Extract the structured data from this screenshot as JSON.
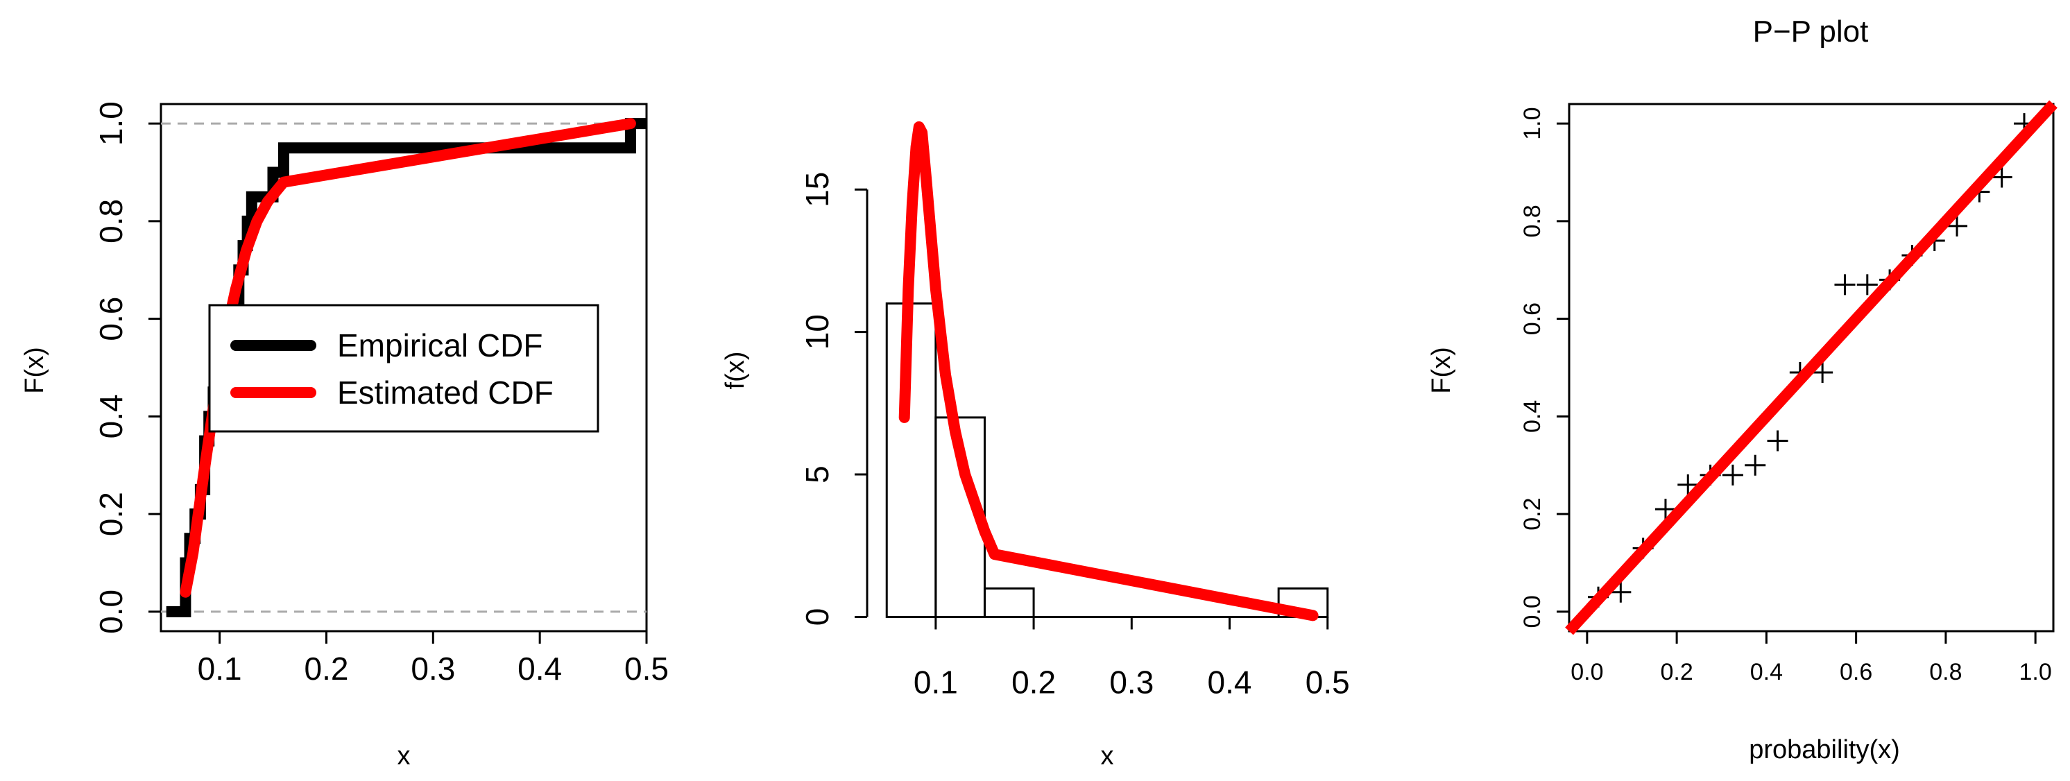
{
  "chart_data": [
    {
      "type": "line",
      "title": "",
      "xlabel": "x",
      "ylabel": "F(x)",
      "xlim": [
        0.045,
        0.5
      ],
      "ylim": [
        -0.04,
        1.04
      ],
      "x_ticks": [
        0.1,
        0.2,
        0.3,
        0.4,
        0.5
      ],
      "x_tick_labels": [
        "0.1",
        "0.2",
        "0.3",
        "0.4",
        "0.5"
      ],
      "y_ticks": [
        0,
        0.2,
        0.4,
        0.6,
        0.8,
        1.0
      ],
      "y_tick_labels": [
        "0.0",
        "0.2",
        "0.4",
        "0.6",
        "0.8",
        "1.0"
      ],
      "reference_lines_y": [
        0,
        1
      ],
      "legend": {
        "position": "center",
        "entries": [
          "Empirical CDF",
          "Estimated CDF"
        ]
      },
      "series": [
        {
          "name": "Empirical CDF",
          "color": "#000000",
          "kind": "step",
          "x": [
            0.05,
            0.068,
            0.072,
            0.077,
            0.082,
            0.086,
            0.09,
            0.094,
            0.098,
            0.102,
            0.106,
            0.11,
            0.114,
            0.118,
            0.122,
            0.126,
            0.13,
            0.135,
            0.14,
            0.15,
            0.16,
            0.485,
            0.5
          ],
          "values": [
            0.0,
            0.1,
            0.15,
            0.2,
            0.25,
            0.35,
            0.4,
            0.45,
            0.5,
            0.55,
            0.55,
            0.55,
            0.6,
            0.7,
            0.75,
            0.8,
            0.85,
            0.85,
            0.85,
            0.9,
            0.95,
            1.0,
            1.0
          ]
        },
        {
          "name": "Estimated CDF",
          "color": "#ff0000",
          "kind": "line",
          "x": [
            0.068,
            0.075,
            0.085,
            0.095,
            0.105,
            0.115,
            0.125,
            0.135,
            0.145,
            0.16,
            0.485
          ],
          "values": [
            0.04,
            0.12,
            0.28,
            0.43,
            0.56,
            0.66,
            0.74,
            0.8,
            0.84,
            0.88,
            1.0
          ]
        }
      ]
    },
    {
      "type": "bar",
      "title": "",
      "xlabel": "x",
      "ylabel": "f(x)",
      "xlim": [
        0.03,
        0.52
      ],
      "ylim": [
        -0.5,
        18
      ],
      "x_ticks": [
        0.1,
        0.2,
        0.3,
        0.4,
        0.5
      ],
      "x_tick_labels": [
        "0.1",
        "0.2",
        "0.3",
        "0.4",
        "0.5"
      ],
      "y_ticks": [
        0,
        5,
        10,
        15
      ],
      "y_tick_labels": [
        "0",
        "5",
        "10",
        "15"
      ],
      "histogram": {
        "bins": [
          [
            0.05,
            0.1
          ],
          [
            0.1,
            0.15
          ],
          [
            0.15,
            0.2
          ],
          [
            0.2,
            0.25
          ],
          [
            0.25,
            0.3
          ],
          [
            0.3,
            0.35
          ],
          [
            0.35,
            0.4
          ],
          [
            0.4,
            0.45
          ],
          [
            0.45,
            0.5
          ]
        ],
        "values": [
          11,
          7,
          1,
          0,
          0,
          0,
          0,
          0,
          1
        ]
      },
      "series": [
        {
          "name": "",
          "color": "#ff0000",
          "x": [
            0.068,
            0.072,
            0.076,
            0.08,
            0.083,
            0.086,
            0.09,
            0.095,
            0.1,
            0.11,
            0.12,
            0.13,
            0.14,
            0.15,
            0.16,
            0.485
          ],
          "values": [
            7.0,
            11.5,
            14.5,
            16.5,
            17.2,
            17.0,
            15.5,
            13.5,
            11.5,
            8.5,
            6.5,
            5.0,
            4.0,
            3.0,
            2.2,
            0.05
          ]
        }
      ]
    },
    {
      "type": "scatter",
      "title": "P−P plot",
      "xlabel": "probability(x)",
      "ylabel": "F(x)",
      "xlim": [
        -0.04,
        1.04
      ],
      "ylim": [
        -0.04,
        1.04
      ],
      "x_ticks": [
        0,
        0.2,
        0.4,
        0.6,
        0.8,
        1.0
      ],
      "x_tick_labels": [
        "0.0",
        "0.2",
        "0.4",
        "0.6",
        "0.8",
        "1.0"
      ],
      "y_ticks": [
        0,
        0.2,
        0.4,
        0.6,
        0.8,
        1.0
      ],
      "y_tick_labels": [
        "0.0",
        "0.2",
        "0.4",
        "0.6",
        "0.8",
        "1.0"
      ],
      "series": [
        {
          "name": "",
          "marker": "+",
          "color": "#000000",
          "x": [
            0.025,
            0.075,
            0.125,
            0.175,
            0.225,
            0.275,
            0.325,
            0.375,
            0.425,
            0.475,
            0.525,
            0.575,
            0.625,
            0.675,
            0.725,
            0.775,
            0.825,
            0.875,
            0.925,
            0.975
          ],
          "values": [
            0.03,
            0.04,
            0.13,
            0.21,
            0.26,
            0.28,
            0.28,
            0.3,
            0.35,
            0.49,
            0.49,
            0.67,
            0.67,
            0.68,
            0.73,
            0.76,
            0.79,
            0.86,
            0.89,
            1.0
          ]
        }
      ],
      "reference_line": {
        "color": "#ff0000",
        "x": [
          -0.04,
          1.04
        ],
        "values": [
          -0.04,
          1.04
        ]
      }
    }
  ]
}
